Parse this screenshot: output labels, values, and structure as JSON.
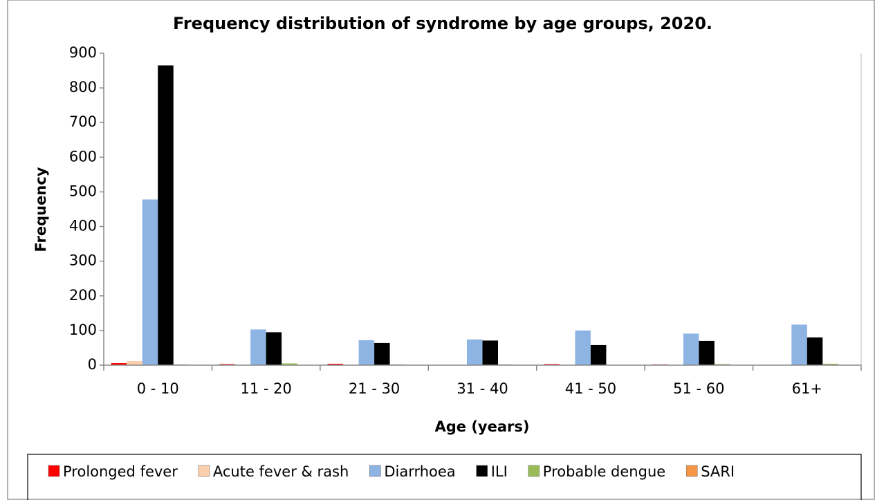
{
  "chart_data": {
    "type": "bar",
    "title": "Frequency distribution of syndrome by age groups, 2020.",
    "x_label": "Age (years)",
    "y_label": "Frequency",
    "categories": [
      "0 - 10",
      "11 - 20",
      "21 - 30",
      "31 - 40",
      "41 - 50",
      "51 - 60",
      "61+"
    ],
    "series": [
      {
        "name": "Prolonged fever",
        "color": "#ff0000",
        "values": [
          6,
          3,
          4,
          0,
          3,
          2,
          0
        ]
      },
      {
        "name": "Acute fever & rash",
        "color": "#fbcfac",
        "values": [
          12,
          0,
          0,
          0,
          0,
          0,
          0
        ]
      },
      {
        "name": "Diarrhoea",
        "color": "#8db4e2",
        "values": [
          478,
          103,
          72,
          74,
          100,
          91,
          117
        ]
      },
      {
        "name": "ILI",
        "color": "#000000",
        "values": [
          865,
          95,
          64,
          71,
          58,
          70,
          80
        ]
      },
      {
        "name": "Probable dengue",
        "color": "#9bbb59",
        "values": [
          2,
          5,
          2,
          2,
          0,
          3,
          4
        ]
      },
      {
        "name": "SARI",
        "color": "#f79646",
        "values": [
          0,
          0,
          0,
          0,
          0,
          0,
          0
        ]
      }
    ],
    "ylim": [
      0,
      900
    ],
    "yticks": [
      0,
      100,
      200,
      300,
      400,
      500,
      600,
      700,
      800,
      900
    ],
    "grid": false,
    "legend": "bottom"
  }
}
